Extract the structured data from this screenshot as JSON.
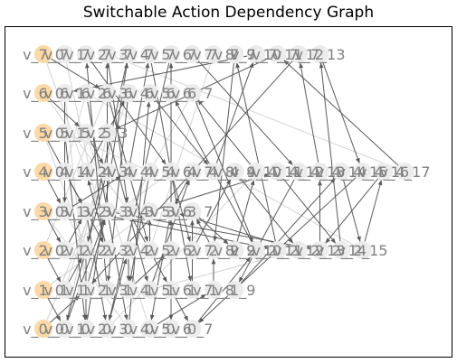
{
  "title": "Switchable Action Dependency Graph",
  "colors": {
    "first_node_fill": "#fcd9a6",
    "node_fill": "#ececec",
    "label": "#808080",
    "edge_dark": "#5a5a5a",
    "edge_light": "#d4d4d4"
  },
  "rows": [
    {
      "name": "v_7",
      "count": 14
    },
    {
      "name": "v_6",
      "count": 8
    },
    {
      "name": "v_5",
      "count": 4
    },
    {
      "name": "v_4",
      "count": 18
    },
    {
      "name": "v_3",
      "count": 8
    },
    {
      "name": "v_2",
      "count": 16
    },
    {
      "name": "v_1",
      "count": 10
    },
    {
      "name": "v_0",
      "count": 8
    }
  ],
  "edges": [
    [
      7,
      0,
      6,
      3
    ],
    [
      7,
      1,
      5,
      5
    ],
    [
      7,
      2,
      4,
      6
    ],
    [
      7,
      3,
      3,
      4
    ],
    [
      7,
      4,
      2,
      2
    ],
    [
      7,
      5,
      1,
      7
    ],
    [
      7,
      6,
      0,
      3
    ],
    [
      7,
      7,
      4,
      12
    ],
    [
      7,
      8,
      3,
      9
    ],
    [
      7,
      9,
      2,
      8
    ],
    [
      7,
      10,
      6,
      1
    ],
    [
      7,
      11,
      5,
      3
    ],
    [
      7,
      12,
      1,
      2
    ],
    [
      7,
      13,
      4,
      15
    ],
    [
      6,
      0,
      5,
      2
    ],
    [
      6,
      1,
      3,
      1
    ],
    [
      6,
      2,
      0,
      4
    ],
    [
      6,
      3,
      2,
      5
    ],
    [
      6,
      4,
      1,
      3
    ],
    [
      6,
      5,
      4,
      8
    ],
    [
      6,
      6,
      0,
      6
    ],
    [
      6,
      7,
      2,
      10
    ],
    [
      5,
      0,
      3,
      2
    ],
    [
      5,
      1,
      0,
      2
    ],
    [
      5,
      2,
      4,
      3
    ],
    [
      5,
      3,
      1,
      5
    ],
    [
      4,
      0,
      3,
      1
    ],
    [
      4,
      1,
      2,
      3
    ],
    [
      4,
      2,
      6,
      4
    ],
    [
      4,
      3,
      0,
      1
    ],
    [
      4,
      4,
      7,
      5
    ],
    [
      4,
      5,
      1,
      4
    ],
    [
      4,
      6,
      2,
      7
    ],
    [
      4,
      7,
      3,
      6
    ],
    [
      4,
      8,
      7,
      10
    ],
    [
      4,
      9,
      2,
      12
    ],
    [
      4,
      10,
      6,
      7
    ],
    [
      4,
      11,
      2,
      14
    ],
    [
      4,
      12,
      1,
      9
    ],
    [
      4,
      13,
      7,
      12
    ],
    [
      4,
      14,
      2,
      15
    ],
    [
      4,
      15,
      0,
      7
    ],
    [
      4,
      16,
      2,
      13
    ],
    [
      4,
      17,
      7,
      11
    ],
    [
      3,
      0,
      2,
      1
    ],
    [
      3,
      1,
      4,
      4
    ],
    [
      3,
      2,
      0,
      3
    ],
    [
      3,
      3,
      7,
      3
    ],
    [
      3,
      4,
      1,
      6
    ],
    [
      3,
      5,
      4,
      11
    ],
    [
      3,
      6,
      0,
      5
    ],
    [
      3,
      7,
      2,
      9
    ],
    [
      3,
      2,
      2,
      11
    ],
    [
      3,
      3,
      2,
      13
    ],
    [
      2,
      0,
      1,
      1
    ],
    [
      2,
      1,
      3,
      2
    ],
    [
      2,
      2,
      0,
      2
    ],
    [
      2,
      3,
      4,
      2
    ],
    [
      2,
      4,
      1,
      4
    ],
    [
      2,
      5,
      3,
      5
    ],
    [
      2,
      6,
      7,
      6
    ],
    [
      2,
      7,
      4,
      9
    ],
    [
      2,
      8,
      3,
      7
    ],
    [
      2,
      9,
      4,
      10
    ],
    [
      2,
      10,
      6,
      6
    ],
    [
      2,
      11,
      7,
      9
    ],
    [
      2,
      12,
      3,
      6
    ],
    [
      2,
      13,
      4,
      13
    ],
    [
      2,
      14,
      7,
      13
    ],
    [
      2,
      15,
      4,
      16
    ],
    [
      1,
      0,
      0,
      1
    ],
    [
      1,
      1,
      2,
      2
    ],
    [
      1,
      2,
      3,
      3
    ],
    [
      1,
      3,
      7,
      2
    ],
    [
      1,
      4,
      2,
      6
    ],
    [
      1,
      5,
      4,
      7
    ],
    [
      1,
      6,
      0,
      7
    ],
    [
      1,
      7,
      3,
      7
    ],
    [
      1,
      8,
      2,
      8
    ],
    [
      1,
      9,
      4,
      14
    ],
    [
      0,
      0,
      1,
      2
    ],
    [
      0,
      1,
      3,
      3
    ],
    [
      0,
      2,
      7,
      4
    ],
    [
      0,
      3,
      2,
      4
    ],
    [
      0,
      4,
      6,
      5
    ],
    [
      0,
      5,
      1,
      8
    ],
    [
      0,
      6,
      3,
      6
    ],
    [
      0,
      7,
      2,
      10
    ]
  ],
  "light_edges": [
    [
      7,
      0,
      4,
      2
    ],
    [
      7,
      1,
      2,
      3
    ],
    [
      6,
      0,
      3,
      4
    ],
    [
      6,
      1,
      1,
      2
    ],
    [
      5,
      0,
      2,
      2
    ],
    [
      5,
      1,
      4,
      5
    ],
    [
      4,
      0,
      1,
      3
    ],
    [
      4,
      1,
      6,
      2
    ],
    [
      3,
      0,
      0,
      4
    ],
    [
      3,
      1,
      5,
      1
    ],
    [
      2,
      0,
      6,
      3
    ],
    [
      2,
      1,
      4,
      6
    ],
    [
      1,
      0,
      3,
      5
    ],
    [
      1,
      1,
      6,
      4
    ],
    [
      0,
      0,
      4,
      3
    ],
    [
      0,
      1,
      5,
      3
    ],
    [
      7,
      3,
      4,
      17
    ],
    [
      6,
      2,
      2,
      15
    ],
    [
      4,
      6,
      0,
      6
    ],
    [
      3,
      4,
      6,
      7
    ],
    [
      2,
      5,
      7,
      8
    ],
    [
      1,
      5,
      2,
      12
    ],
    [
      0,
      3,
      4,
      10
    ],
    [
      5,
      2,
      0,
      5
    ]
  ]
}
